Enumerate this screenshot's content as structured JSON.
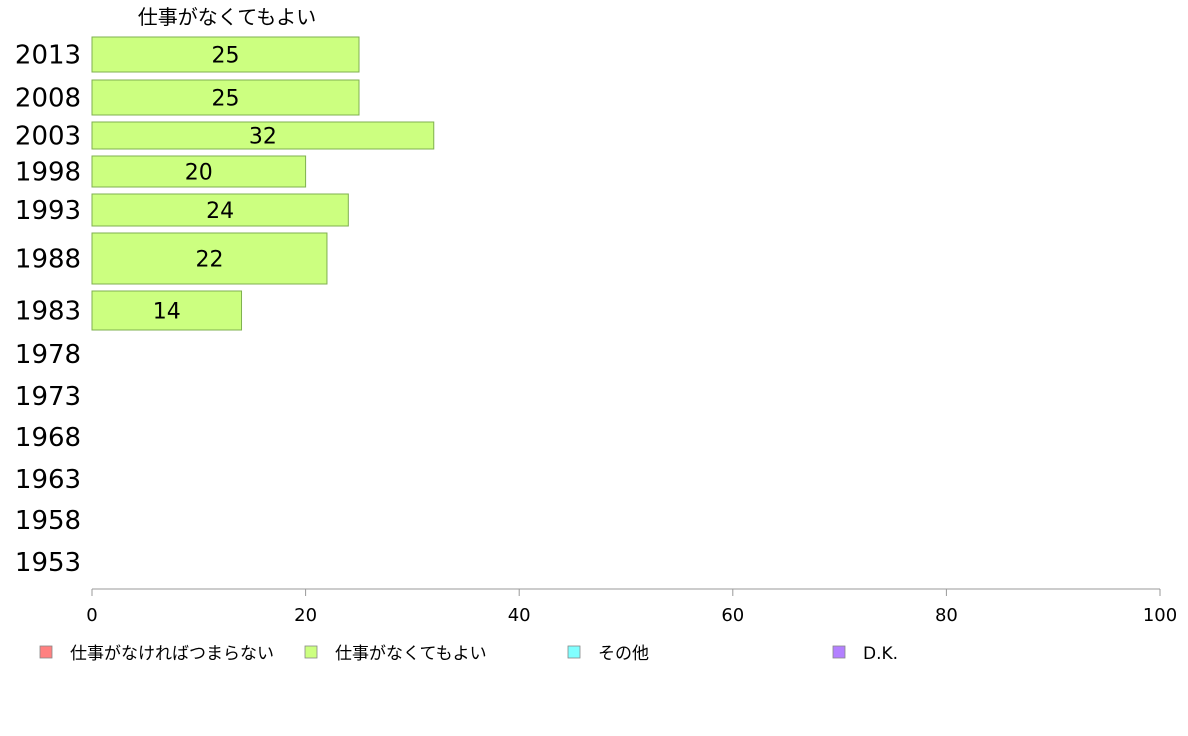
{
  "chart_data": {
    "type": "bar",
    "orientation": "horizontal",
    "series_title": "仕事がなくてもよい",
    "categories": [
      "2013",
      "2008",
      "2003",
      "1998",
      "1993",
      "1988",
      "1983",
      "1978",
      "1973",
      "1968",
      "1963",
      "1958",
      "1953"
    ],
    "series": [
      {
        "name": "仕事がなくてもよい",
        "values": [
          25,
          25,
          32,
          20,
          24,
          22,
          14,
          null,
          null,
          null,
          null,
          null,
          null
        ]
      }
    ],
    "value_labels": [
      "25",
      "25",
      "32",
      "20",
      "24",
      "22",
      "14",
      "",
      "",
      "",
      "",
      "",
      ""
    ],
    "xlim": [
      0,
      100
    ],
    "xticks": [
      "0",
      "20",
      "40",
      "60",
      "80",
      "100"
    ],
    "grid": false,
    "legend_position": "bottom",
    "legend": [
      {
        "label": "仕事がなければつまらない",
        "color": "#ff8080"
      },
      {
        "label": "仕事がなくてもよい",
        "color": "#ccff80"
      },
      {
        "label": "その他",
        "color": "#80ffff"
      },
      {
        "label": "D.K.",
        "color": "#b380ff"
      }
    ],
    "bar_color": "#ccff80",
    "bar_stroke": "#7fb04f"
  }
}
